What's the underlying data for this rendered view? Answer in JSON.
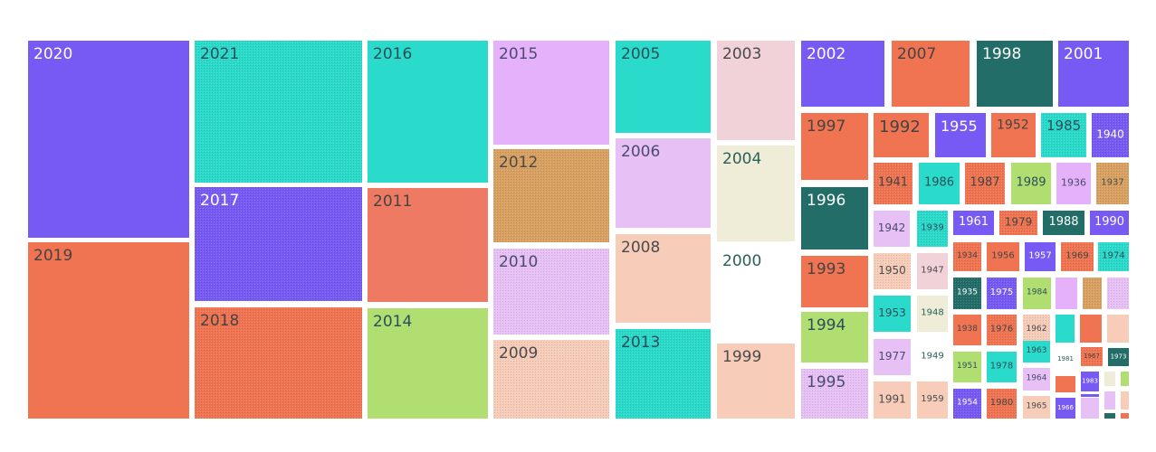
{
  "chart_data": {
    "type": "treemap",
    "colors": {
      "purple": "#7759F3",
      "orange": "#F07451",
      "teal": "#2ADACB",
      "dark_teal": "#226D67",
      "lilac": "#E5B1FA",
      "light_purple": "#E7C1F6",
      "ochre": "#D8A162",
      "peach": "#F7CDBA",
      "light_pink": "#F2D2D9",
      "cream": "#EFEDD8",
      "white": "#FFFFFF",
      "lime": "#B1DE71",
      "salmon": "#EE7A64"
    },
    "tiles": [
      {
        "label": "2020",
        "color": "purple"
      },
      {
        "label": "2019",
        "color": "orange"
      },
      {
        "label": "2021",
        "color": "teal",
        "hatched": true
      },
      {
        "label": "2017",
        "color": "purple",
        "hatched": true
      },
      {
        "label": "2018",
        "color": "orange",
        "hatched": true
      },
      {
        "label": "2016",
        "color": "teal"
      },
      {
        "label": "2011",
        "color": "salmon"
      },
      {
        "label": "2014",
        "color": "lime"
      },
      {
        "label": "2015",
        "color": "lilac"
      },
      {
        "label": "2012",
        "color": "ochre",
        "hatched": true
      },
      {
        "label": "2010",
        "color": "light_purple",
        "hatched": true
      },
      {
        "label": "2009",
        "color": "peach",
        "hatched": true
      },
      {
        "label": "2005",
        "color": "teal"
      },
      {
        "label": "2006",
        "color": "light_purple"
      },
      {
        "label": "2008",
        "color": "peach"
      },
      {
        "label": "2013",
        "color": "teal",
        "hatched": true
      },
      {
        "label": "2003",
        "color": "light_pink"
      },
      {
        "label": "2004",
        "color": "cream"
      },
      {
        "label": "2000",
        "color": "white"
      },
      {
        "label": "1999",
        "color": "peach"
      },
      {
        "label": "2002",
        "color": "purple"
      },
      {
        "label": "2007",
        "color": "orange"
      },
      {
        "label": "1998",
        "color": "dark_teal"
      },
      {
        "label": "2001",
        "color": "purple"
      },
      {
        "label": "1997",
        "color": "orange"
      },
      {
        "label": "1996",
        "color": "dark_teal"
      },
      {
        "label": "1993",
        "color": "orange"
      },
      {
        "label": "1994",
        "color": "lime"
      },
      {
        "label": "1995",
        "color": "light_purple",
        "hatched": true
      },
      {
        "label": "1992",
        "color": "orange"
      },
      {
        "label": "1955",
        "color": "purple"
      },
      {
        "label": "1952",
        "color": "orange"
      },
      {
        "label": "1985",
        "color": "teal",
        "hatched": true
      },
      {
        "label": "1940",
        "color": "purple",
        "hatched": true
      },
      {
        "label": "1941",
        "color": "orange",
        "hatched": true
      },
      {
        "label": "1986",
        "color": "teal"
      },
      {
        "label": "1987",
        "color": "orange",
        "hatched": true
      },
      {
        "label": "1989",
        "color": "lime"
      },
      {
        "label": "1936",
        "color": "lilac"
      },
      {
        "label": "1937",
        "color": "ochre",
        "hatched": true
      },
      {
        "label": "1942",
        "color": "light_purple"
      },
      {
        "label": "1939",
        "color": "teal",
        "hatched": true
      },
      {
        "label": "1961",
        "color": "purple"
      },
      {
        "label": "1979",
        "color": "orange",
        "hatched": true
      },
      {
        "label": "1988",
        "color": "dark_teal"
      },
      {
        "label": "1990",
        "color": "purple"
      },
      {
        "label": "1950",
        "color": "peach",
        "hatched": true
      },
      {
        "label": "1947",
        "color": "light_pink"
      },
      {
        "label": "1934",
        "color": "orange",
        "hatched": true
      },
      {
        "label": "1956",
        "color": "orange"
      },
      {
        "label": "1957",
        "color": "purple"
      },
      {
        "label": "1969",
        "color": "orange",
        "hatched": true
      },
      {
        "label": "1974",
        "color": "teal",
        "hatched": true
      },
      {
        "label": "1953",
        "color": "teal"
      },
      {
        "label": "1948",
        "color": "cream"
      },
      {
        "label": "1935",
        "color": "dark_teal",
        "hatched": true
      },
      {
        "label": "1975",
        "color": "purple",
        "hatched": true
      },
      {
        "label": "1984",
        "color": "lime"
      },
      {
        "label": "1977",
        "color": "light_purple"
      },
      {
        "label": "1949",
        "color": "white"
      },
      {
        "label": "1938",
        "color": "orange"
      },
      {
        "label": "1976",
        "color": "orange",
        "hatched": true
      },
      {
        "label": "1962",
        "color": "peach",
        "hatched": true
      },
      {
        "label": "1991",
        "color": "peach"
      },
      {
        "label": "1959",
        "color": "peach"
      },
      {
        "label": "1951",
        "color": "lime"
      },
      {
        "label": "1978",
        "color": "teal"
      },
      {
        "label": "1963",
        "color": "teal"
      },
      {
        "label": "1954",
        "color": "purple",
        "hatched": true
      },
      {
        "label": "1980",
        "color": "orange",
        "hatched": true
      },
      {
        "label": "1964",
        "color": "light_purple"
      },
      {
        "label": "1965",
        "color": "peach"
      },
      {
        "label": "1966",
        "color": "purple"
      },
      {
        "label": "1967",
        "color": "orange",
        "hatched": true
      },
      {
        "label": "1973",
        "color": "dark_teal"
      },
      {
        "label": "1981",
        "color": "white"
      },
      {
        "label": "1983",
        "color": "purple"
      },
      {
        "label": "",
        "color": "lilac"
      },
      {
        "label": "",
        "color": "ochre",
        "hatched": true
      },
      {
        "label": "",
        "color": "light_purple",
        "hatched": true
      },
      {
        "label": "",
        "color": "teal"
      },
      {
        "label": "",
        "color": "orange"
      },
      {
        "label": "",
        "color": "peach"
      },
      {
        "label": "",
        "color": "cream"
      },
      {
        "label": "",
        "color": "lime"
      },
      {
        "label": "",
        "color": "orange"
      },
      {
        "label": "",
        "color": "light_purple"
      },
      {
        "label": "",
        "color": "light_purple"
      },
      {
        "label": "",
        "color": "peach"
      },
      {
        "label": "",
        "color": "dark_teal"
      },
      {
        "label": "",
        "color": "orange"
      },
      {
        "label": "",
        "color": "purple"
      }
    ]
  }
}
